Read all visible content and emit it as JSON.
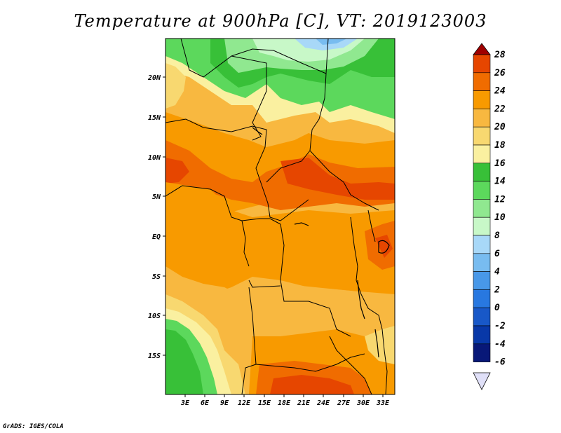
{
  "title": "Temperature at 900hPa [C], VT: 2019123003",
  "footer": "GrADS: IGES/COLA",
  "map": {
    "lat_labels": [
      "20N",
      "15N",
      "10N",
      "5N",
      "EQ",
      "5S",
      "10S",
      "15S"
    ],
    "lon_labels": [
      "3E",
      "6E",
      "9E",
      "12E",
      "15E",
      "18E",
      "21E",
      "24E",
      "27E",
      "30E",
      "33E"
    ]
  },
  "colorbar": {
    "labels": [
      "28",
      "26",
      "24",
      "22",
      "20",
      "18",
      "16",
      "14",
      "12",
      "10",
      "8",
      "6",
      "4",
      "2",
      "0",
      "-2",
      "-4",
      "-6"
    ],
    "colors": [
      "#a00000",
      "#e64600",
      "#f06c00",
      "#f89a00",
      "#f8b840",
      "#f8d870",
      "#faf0a0",
      "#38c038",
      "#5cd85c",
      "#90e890",
      "#c8f8c8",
      "#a8d8f8",
      "#78bcf0",
      "#4898e8",
      "#2878e0",
      "#1858c8",
      "#0838a8",
      "#081878"
    ]
  }
}
